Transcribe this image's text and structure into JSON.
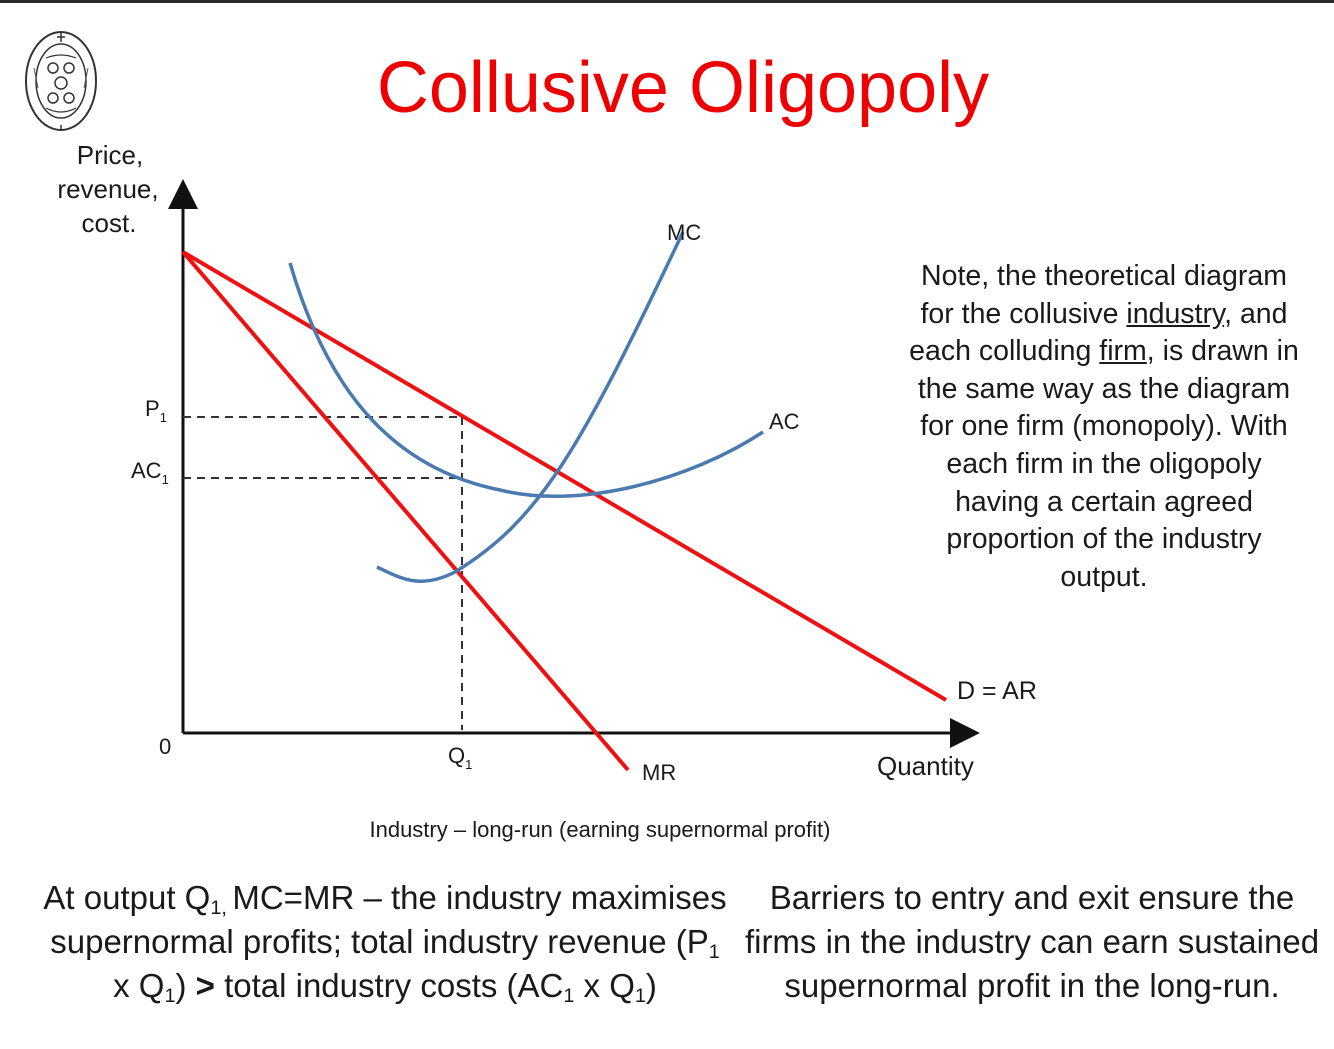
{
  "title": "Collusive Oligopoly",
  "colors": {
    "title": "#ee0000",
    "curves_red": "#ee1111",
    "curves_blue": "#4a7ab0"
  },
  "icons": {
    "logo": "school-crest-icon"
  },
  "diagram": {
    "y_axis_label": [
      "Price,",
      "revenue,",
      "cost."
    ],
    "x_axis_label": "Quantity",
    "origin_label": "0",
    "p1_label": {
      "main": "P",
      "sub": "1"
    },
    "ac1_label": {
      "main": "AC",
      "sub": "1"
    },
    "q1_label": {
      "main": "Q",
      "sub": "1"
    },
    "mc_label": "MC",
    "ac_label": "AC",
    "demand_label": "D = AR",
    "mr_label": "MR"
  },
  "note": {
    "part1": "Note, the theoretical diagram for the collusive ",
    "industry_word": "industry",
    "part2": ", and each colluding ",
    "firm_word": "firm",
    "part3": ", is drawn in the same way as the diagram for one firm (monopoly). With each firm in the oligopoly having a certain agreed proportion of the industry output."
  },
  "caption": "Industry – long-run (earning supernormal profit)",
  "bottom_left": {
    "s1": "At output Q",
    "s1_sub": "1, ",
    "s2": "MC=MR – the industry maximises supernormal profits; total industry revenue (P",
    "s3": " x Q",
    "s4": ") ",
    "gt": ">",
    "s5": " total industry costs (AC",
    "s6": " x Q",
    "s7": ")",
    "sub1": "1"
  },
  "bottom_right": "Barriers to entry and exit ensure the firms in the industry can earn sustained supernormal profit in the long-run."
}
